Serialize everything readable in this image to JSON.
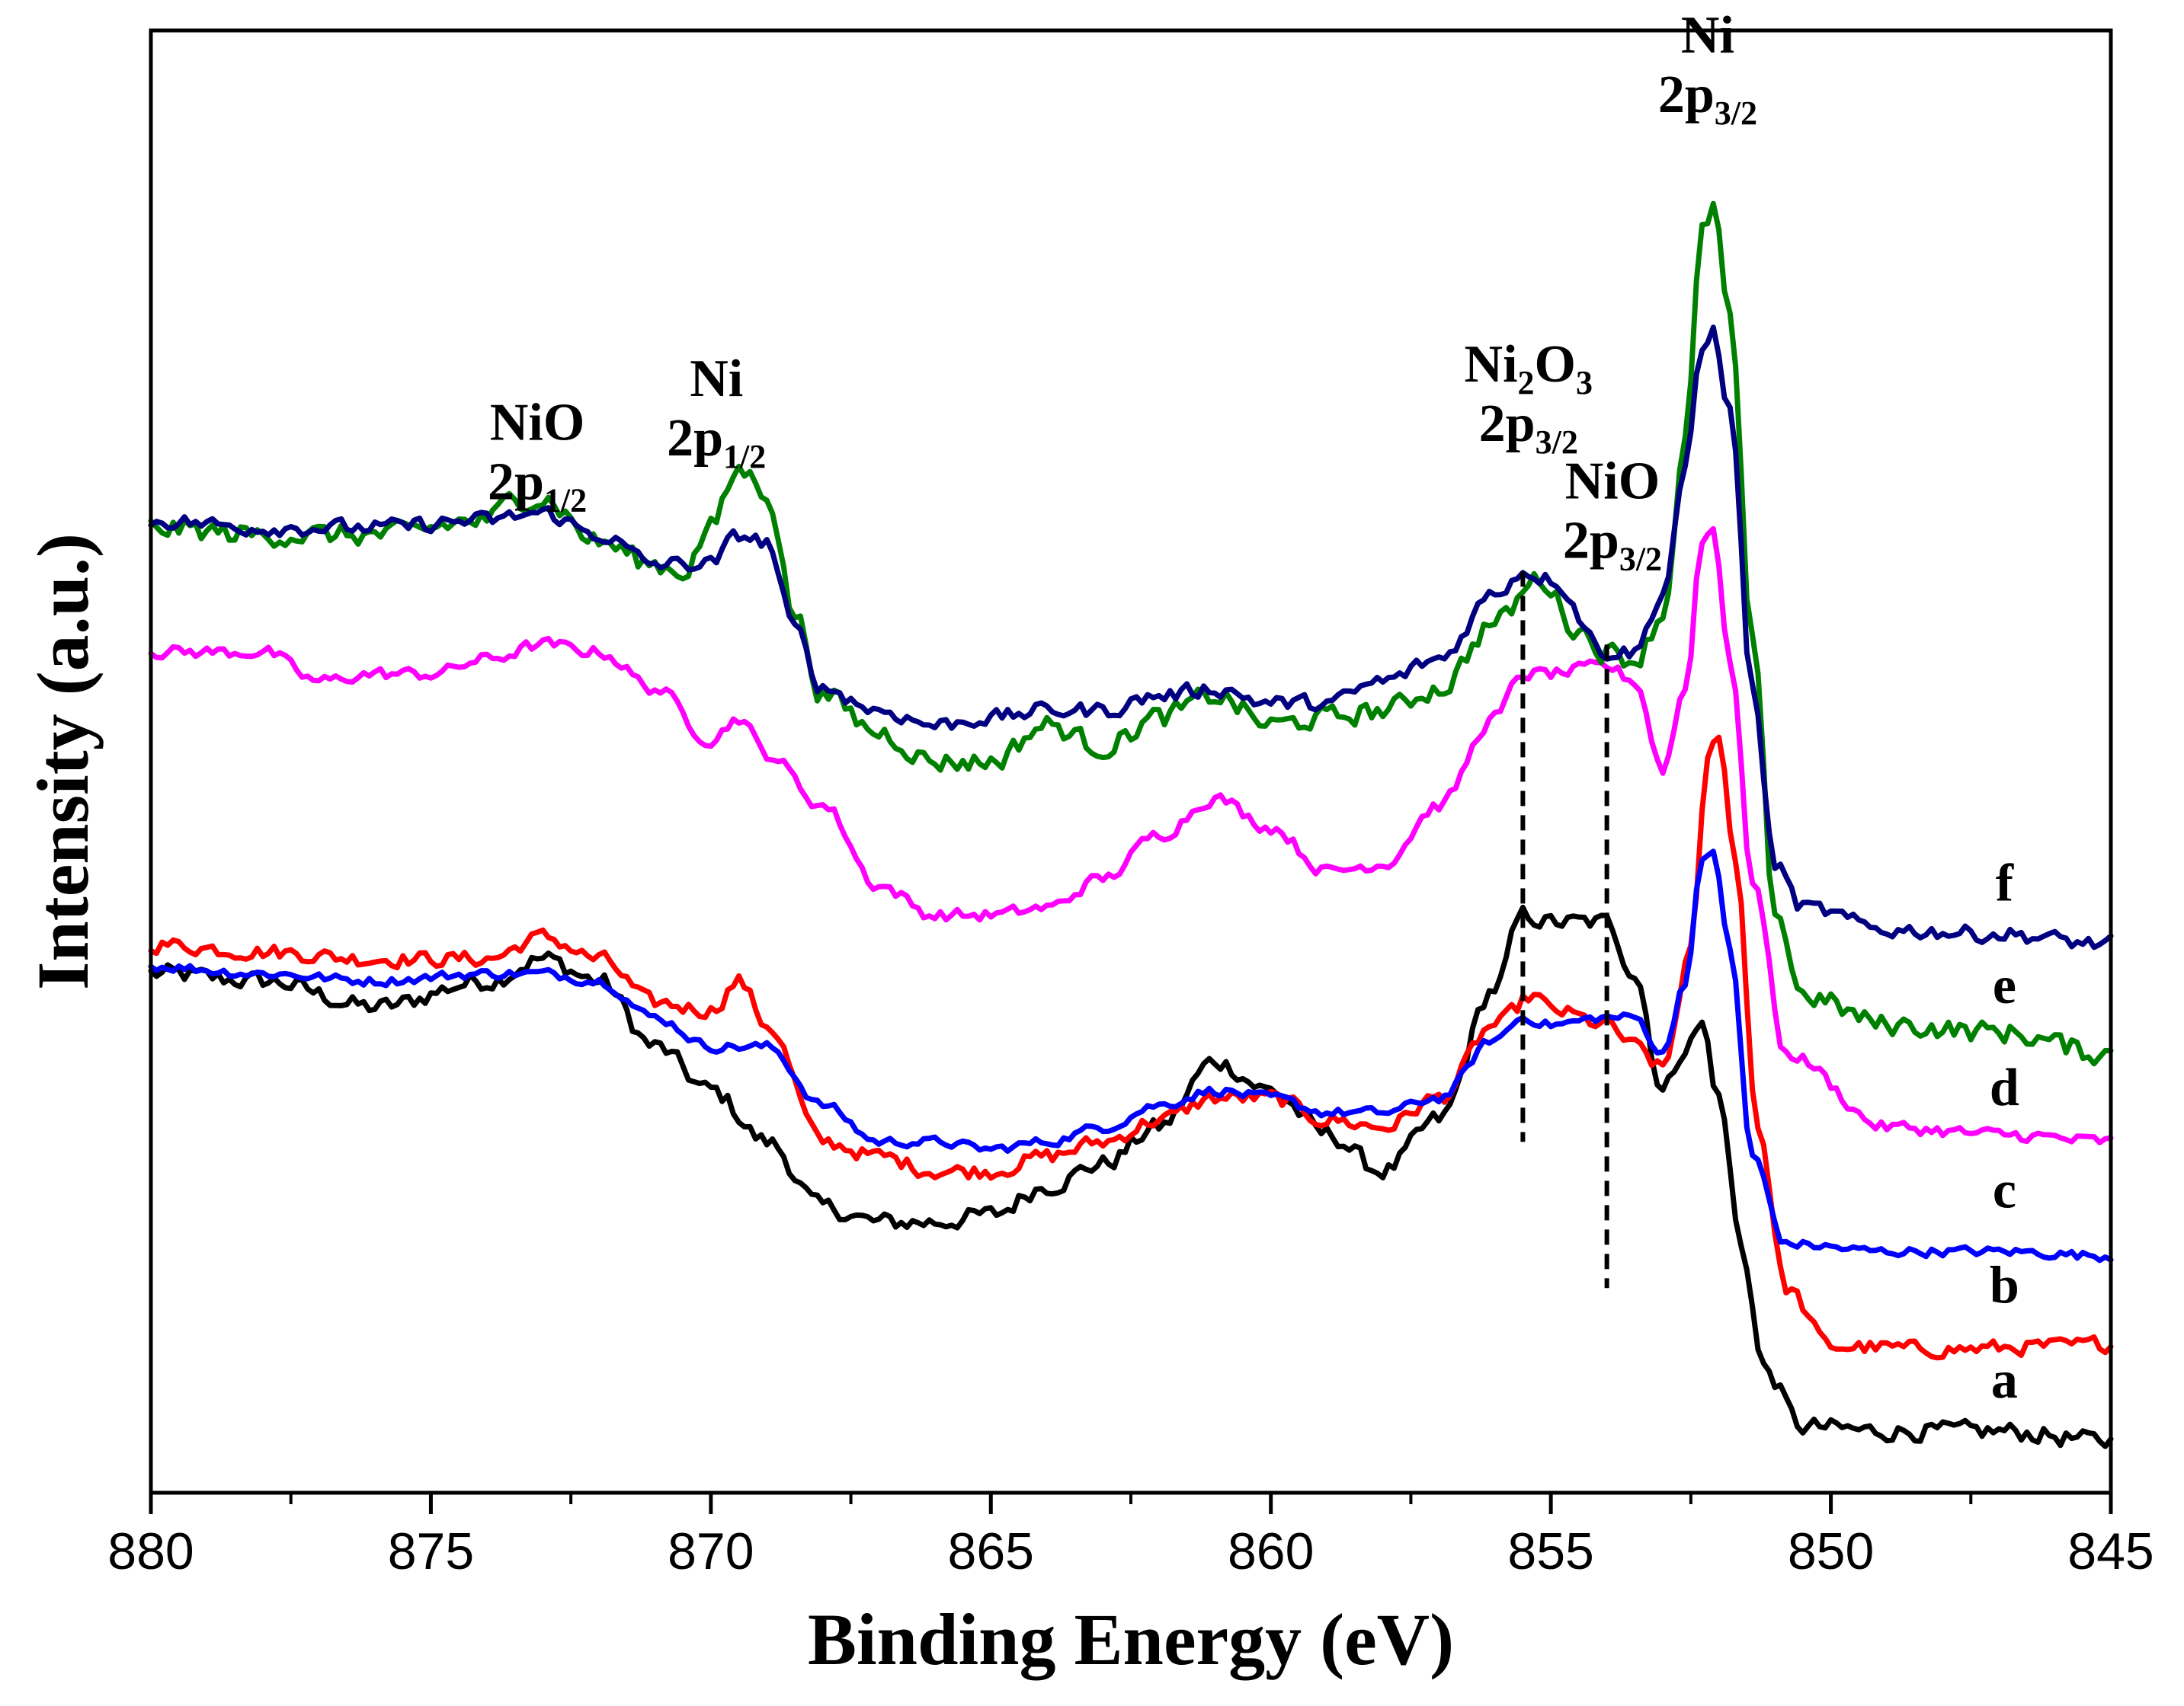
{
  "chart_data": {
    "type": "line",
    "title": "",
    "xlabel": "Binding Energy (eV)",
    "ylabel": "Intensity (a.u.)",
    "xlim": [
      880,
      845
    ],
    "ylim": [
      0,
      100
    ],
    "x_reversed": true,
    "xticks": [
      "880",
      "875",
      "870",
      "865",
      "860",
      "855",
      "850",
      "845"
    ],
    "xtick_values": [
      880,
      875,
      870,
      865,
      860,
      855,
      850,
      845
    ],
    "grid": false,
    "legend": "none",
    "series": [
      {
        "name": "a",
        "color": "#000000",
        "noise": 1.2,
        "points": [
          [
            880,
            35.5
          ],
          [
            878,
            35.0
          ],
          [
            876,
            33.2
          ],
          [
            874,
            35.0
          ],
          [
            873,
            36.5
          ],
          [
            872,
            35.0
          ],
          [
            871,
            30.5
          ],
          [
            870,
            27.5
          ],
          [
            869,
            24.0
          ],
          [
            868,
            19.5
          ],
          [
            867,
            18.5
          ],
          [
            866,
            18.5
          ],
          [
            865,
            19.0
          ],
          [
            864,
            21.0
          ],
          [
            863,
            22.5
          ],
          [
            862,
            25.0
          ],
          [
            861,
            29.5
          ],
          [
            860,
            27.5
          ],
          [
            859,
            24.5
          ],
          [
            858,
            22.0
          ],
          [
            857,
            25.5
          ],
          [
            856,
            34.5
          ],
          [
            855.5,
            39.5
          ],
          [
            855,
            39.0
          ],
          [
            854,
            39.0
          ],
          [
            853.5,
            35.5
          ],
          [
            853,
            27.5
          ],
          [
            852.6,
            30.5
          ],
          [
            852.3,
            32.0
          ],
          [
            852.0,
            27.0
          ],
          [
            851.6,
            17.0
          ],
          [
            851.2,
            8.5
          ],
          [
            850.5,
            4.5
          ],
          [
            849,
            4.2
          ],
          [
            847,
            4.2
          ],
          [
            845,
            3.5
          ]
        ]
      },
      {
        "name": "b",
        "color": "#ff0000",
        "noise": 1.0,
        "points": [
          [
            880,
            37.5
          ],
          [
            878,
            37.0
          ],
          [
            876,
            36.5
          ],
          [
            874,
            36.5
          ],
          [
            873,
            38.0
          ],
          [
            872,
            36.5
          ],
          [
            871,
            33.5
          ],
          [
            870,
            33.0
          ],
          [
            869.5,
            35.0
          ],
          [
            869,
            32.0
          ],
          [
            868,
            24.0
          ],
          [
            867,
            23.0
          ],
          [
            866,
            22.0
          ],
          [
            865,
            22.0
          ],
          [
            864,
            23.0
          ],
          [
            863,
            24.0
          ],
          [
            862,
            25.5
          ],
          [
            861,
            27.0
          ],
          [
            860,
            27.0
          ],
          [
            859,
            25.5
          ],
          [
            858,
            25.0
          ],
          [
            857,
            27.0
          ],
          [
            856,
            32.0
          ],
          [
            855.3,
            34.0
          ],
          [
            855,
            33.0
          ],
          [
            854,
            32.0
          ],
          [
            853.5,
            30.5
          ],
          [
            853,
            29.0
          ],
          [
            852.5,
            37.0
          ],
          [
            852.2,
            50.0
          ],
          [
            852.0,
            52.0
          ],
          [
            851.7,
            43.0
          ],
          [
            851.3,
            25.0
          ],
          [
            850.8,
            14.0
          ],
          [
            850,
            10.0
          ],
          [
            848,
            9.8
          ],
          [
            846,
            10.0
          ],
          [
            845,
            10.2
          ]
        ]
      },
      {
        "name": "c",
        "color": "#0000ff",
        "noise": 0.6,
        "points": [
          [
            880,
            36.0
          ],
          [
            878,
            35.5
          ],
          [
            876,
            35.0
          ],
          [
            874,
            35.5
          ],
          [
            873,
            35.5
          ],
          [
            872,
            35.0
          ],
          [
            871,
            32.5
          ],
          [
            870,
            30.5
          ],
          [
            869,
            30.5
          ],
          [
            868,
            26.5
          ],
          [
            867,
            24.0
          ],
          [
            866,
            24.0
          ],
          [
            865,
            23.5
          ],
          [
            864,
            24.0
          ],
          [
            863,
            25.0
          ],
          [
            862,
            26.5
          ],
          [
            861,
            27.5
          ],
          [
            860,
            27.0
          ],
          [
            859,
            26.0
          ],
          [
            858,
            26.0
          ],
          [
            857,
            27.0
          ],
          [
            856,
            31.0
          ],
          [
            855.5,
            32.5
          ],
          [
            855,
            32.0
          ],
          [
            854,
            32.5
          ],
          [
            853.5,
            32.5
          ],
          [
            853,
            30.0
          ],
          [
            852.6,
            35.0
          ],
          [
            852.3,
            43.0
          ],
          [
            852.1,
            44.0
          ],
          [
            851.8,
            37.0
          ],
          [
            851.4,
            23.0
          ],
          [
            850.8,
            17.0
          ],
          [
            849,
            16.5
          ],
          [
            847,
            16.5
          ],
          [
            845,
            16.2
          ]
        ]
      },
      {
        "name": "d",
        "color": "#ff00ff",
        "noise": 0.8,
        "points": [
          [
            880,
            57.5
          ],
          [
            878,
            57.5
          ],
          [
            877,
            55.5
          ],
          [
            876,
            56.0
          ],
          [
            875,
            56.0
          ],
          [
            874,
            57.0
          ],
          [
            873,
            58.0
          ],
          [
            872,
            57.5
          ],
          [
            871,
            55.0
          ],
          [
            870,
            51.5
          ],
          [
            869.5,
            53.0
          ],
          [
            869,
            50.5
          ],
          [
            868,
            47.0
          ],
          [
            867,
            41.5
          ],
          [
            866,
            39.5
          ],
          [
            865,
            39.5
          ],
          [
            864,
            40.0
          ],
          [
            863,
            42.0
          ],
          [
            862,
            45.0
          ],
          [
            861,
            47.5
          ],
          [
            860,
            45.5
          ],
          [
            859,
            42.5
          ],
          [
            858,
            43.0
          ],
          [
            857,
            47.0
          ],
          [
            856,
            53.0
          ],
          [
            855.5,
            56.0
          ],
          [
            855,
            56.0
          ],
          [
            854,
            56.5
          ],
          [
            853.5,
            55.5
          ],
          [
            853,
            49.5
          ],
          [
            852.6,
            55.0
          ],
          [
            852.3,
            65.0
          ],
          [
            852.1,
            66.0
          ],
          [
            851.8,
            57.0
          ],
          [
            851.4,
            42.0
          ],
          [
            850.8,
            30.0
          ],
          [
            849,
            25.0
          ],
          [
            847,
            24.5
          ],
          [
            845,
            24.0
          ]
        ]
      },
      {
        "name": "e",
        "color": "#008000",
        "noise": 1.4,
        "points": [
          [
            880,
            66.0
          ],
          [
            878,
            65.5
          ],
          [
            876,
            65.5
          ],
          [
            874,
            66.5
          ],
          [
            873.5,
            68.0
          ],
          [
            873,
            68.0
          ],
          [
            872,
            65.0
          ],
          [
            871,
            63.5
          ],
          [
            870.5,
            63.0
          ],
          [
            870,
            66.0
          ],
          [
            869.5,
            70.0
          ],
          [
            869,
            68.5
          ],
          [
            868.5,
            60.0
          ],
          [
            868,
            54.5
          ],
          [
            867,
            52.0
          ],
          [
            866,
            50.0
          ],
          [
            865,
            50.0
          ],
          [
            864,
            52.5
          ],
          [
            863,
            51.0
          ],
          [
            862,
            53.0
          ],
          [
            861,
            54.5
          ],
          [
            860,
            52.5
          ],
          [
            859,
            53.0
          ],
          [
            858,
            53.5
          ],
          [
            857,
            55.0
          ],
          [
            856,
            59.5
          ],
          [
            855.2,
            62.5
          ],
          [
            854.5,
            59.0
          ],
          [
            854,
            57.5
          ],
          [
            853.5,
            57.0
          ],
          [
            853,
            60.0
          ],
          [
            852.6,
            72.0
          ],
          [
            852.3,
            86.0
          ],
          [
            852.1,
            88.0
          ],
          [
            851.8,
            80.0
          ],
          [
            851.4,
            58.0
          ],
          [
            851.0,
            40.0
          ],
          [
            850.5,
            34.0
          ],
          [
            849,
            32.0
          ],
          [
            847,
            31.5
          ],
          [
            845,
            30.0
          ]
        ]
      },
      {
        "name": "f",
        "color": "#000080",
        "noise": 1.0,
        "points": [
          [
            880,
            66.5
          ],
          [
            878,
            66.0
          ],
          [
            876,
            66.0
          ],
          [
            874,
            66.5
          ],
          [
            873,
            67.0
          ],
          [
            872,
            65.5
          ],
          [
            871,
            63.5
          ],
          [
            870,
            63.5
          ],
          [
            869.5,
            65.5
          ],
          [
            869,
            65.0
          ],
          [
            868.5,
            59.0
          ],
          [
            868,
            55.0
          ],
          [
            867,
            53.5
          ],
          [
            866,
            52.5
          ],
          [
            865,
            53.0
          ],
          [
            864,
            53.5
          ],
          [
            863,
            53.5
          ],
          [
            862,
            54.5
          ],
          [
            861,
            55.0
          ],
          [
            860,
            54.0
          ],
          [
            859,
            54.0
          ],
          [
            858,
            55.5
          ],
          [
            857,
            57.0
          ],
          [
            856,
            61.5
          ],
          [
            855.5,
            63.0
          ],
          [
            855,
            62.5
          ],
          [
            854,
            57.5
          ],
          [
            853.5,
            57.5
          ],
          [
            853,
            61.5
          ],
          [
            852.6,
            70.0
          ],
          [
            852.3,
            78.0
          ],
          [
            852.1,
            79.5
          ],
          [
            851.8,
            74.0
          ],
          [
            851.4,
            55.0
          ],
          [
            851.0,
            43.0
          ],
          [
            850.5,
            40.0
          ],
          [
            849,
            38.5
          ],
          [
            847,
            38.2
          ],
          [
            845,
            37.5
          ]
        ]
      }
    ],
    "reference_lines": [
      {
        "x": 855.5,
        "y_from": 24.0,
        "y_to": 63.0
      },
      {
        "x": 854.0,
        "y_from": 14.0,
        "y_to": 58.0
      }
    ],
    "series_labels": [
      {
        "text": "f",
        "x": 846.9,
        "y": 40.5
      },
      {
        "text": "e",
        "x": 846.9,
        "y": 33.5
      },
      {
        "text": "d",
        "x": 846.9,
        "y": 26.5
      },
      {
        "text": "c",
        "x": 846.9,
        "y": 19.5
      },
      {
        "text": "b",
        "x": 846.9,
        "y": 13.0
      },
      {
        "text": "a",
        "x": 846.9,
        "y": 6.5
      }
    ],
    "annotations": [
      {
        "main": "NiO",
        "line2": "2p",
        "sub": "1/2",
        "x": 873.1,
        "y": 72.0
      },
      {
        "main": "Ni",
        "line2": "2p",
        "sub": "1/2",
        "x": 869.9,
        "y": 75.0
      },
      {
        "main": "Ni",
        "sub1": "2",
        "mid": "O",
        "sub2": "3",
        "line2": "2p",
        "sub": "3/2",
        "x": 855.4,
        "y": 76.0
      },
      {
        "main": "NiO",
        "line2": "2p",
        "sub": "3/2",
        "x": 853.9,
        "y": 68.0
      },
      {
        "main": "Ni",
        "line2": "2p",
        "sub": "3/2",
        "x": 852.2,
        "y": 98.5
      }
    ]
  }
}
